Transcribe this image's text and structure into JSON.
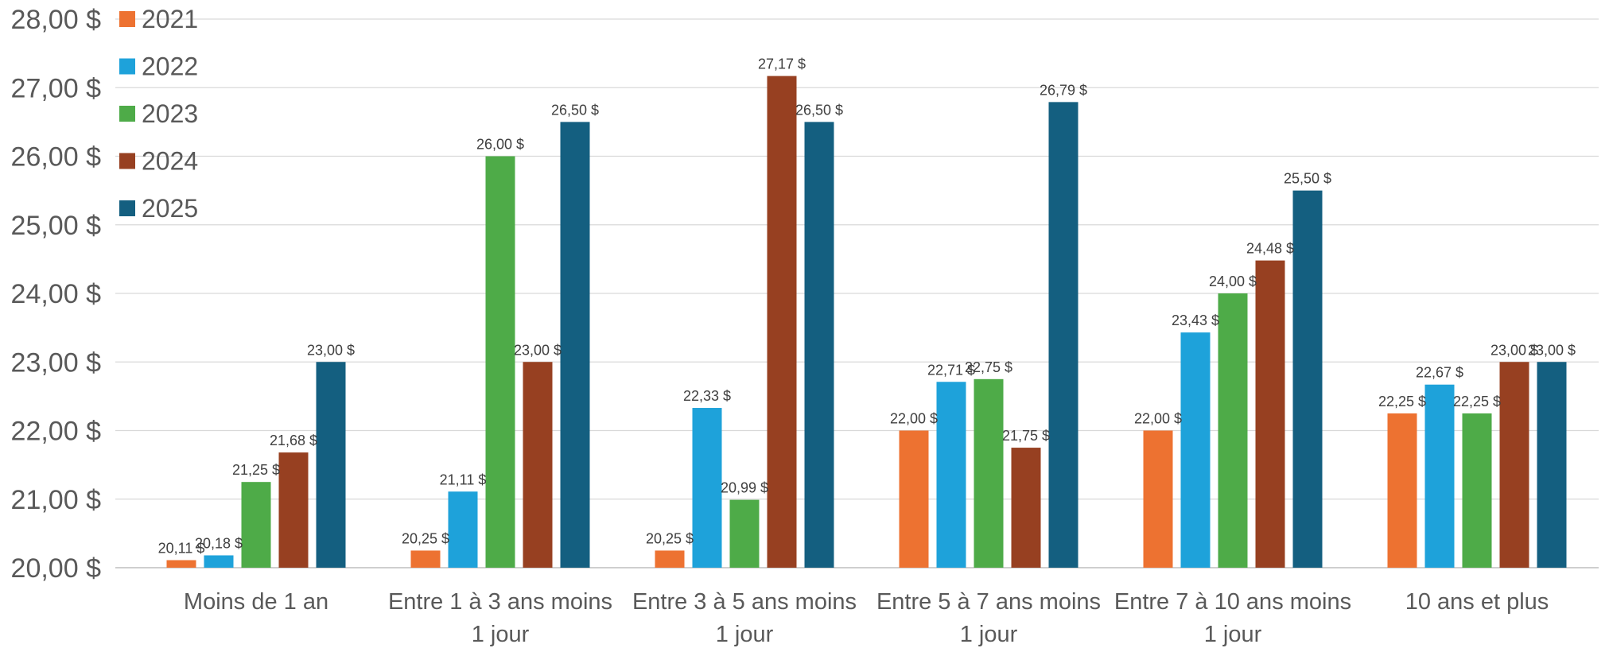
{
  "chart_data": {
    "type": "bar",
    "title": "",
    "xlabel": "",
    "ylabel": "",
    "ylim": [
      20,
      28
    ],
    "y_ticks": [
      20,
      21,
      22,
      23,
      24,
      25,
      26,
      27,
      28
    ],
    "y_tick_labels": [
      "20,00 $",
      "21,00 $",
      "22,00 $",
      "23,00 $",
      "24,00 $",
      "25,00 $",
      "26,00 $",
      "27,00 $",
      "28,00 $"
    ],
    "grid": true,
    "legend_position": "top-left",
    "categories": [
      [
        "Moins de 1 an"
      ],
      [
        "Entre 1 à 3 ans moins",
        "1 jour"
      ],
      [
        "Entre 3 à 5 ans moins",
        "1 jour"
      ],
      [
        "Entre 5 à 7 ans moins",
        "1 jour"
      ],
      [
        "Entre 7 à 10 ans moins",
        "1 jour"
      ],
      [
        "10 ans et plus"
      ]
    ],
    "series": [
      {
        "name": "2021",
        "color": "#ED7231",
        "values": [
          20.11,
          20.25,
          20.25,
          22.0,
          22.0,
          22.25
        ],
        "labels": [
          "20,11 $",
          "20,25 $",
          "20,25 $",
          "22,00 $",
          "22,00 $",
          "22,25 $"
        ]
      },
      {
        "name": "2022",
        "color": "#1EA2DA",
        "values": [
          20.18,
          21.11,
          22.33,
          22.71,
          23.43,
          22.67
        ],
        "labels": [
          "20,18 $",
          "21,11 $",
          "22,33 $",
          "22,71 $",
          "23,43 $",
          "22,67 $"
        ]
      },
      {
        "name": "2023",
        "color": "#4EAB48",
        "values": [
          21.25,
          26.0,
          20.99,
          22.75,
          24.0,
          22.25
        ],
        "labels": [
          "21,25 $",
          "26,00 $",
          "20,99 $",
          "22,75 $",
          "24,00 $",
          "22,25 $"
        ]
      },
      {
        "name": "2024",
        "color": "#974021",
        "values": [
          21.68,
          23.0,
          27.17,
          21.75,
          24.48,
          23.0
        ],
        "labels": [
          "21,68 $",
          "23,00 $",
          "27,17 $",
          "21,75 $",
          "24,48 $",
          "23,00 $"
        ]
      },
      {
        "name": "2025",
        "color": "#145F80",
        "values": [
          23.0,
          26.5,
          26.5,
          26.79,
          25.5,
          23.0
        ],
        "labels": [
          "23,00 $",
          "26,50 $",
          "26,50 $",
          "26,79 $",
          "25,50 $",
          "23,00 $"
        ]
      }
    ]
  }
}
